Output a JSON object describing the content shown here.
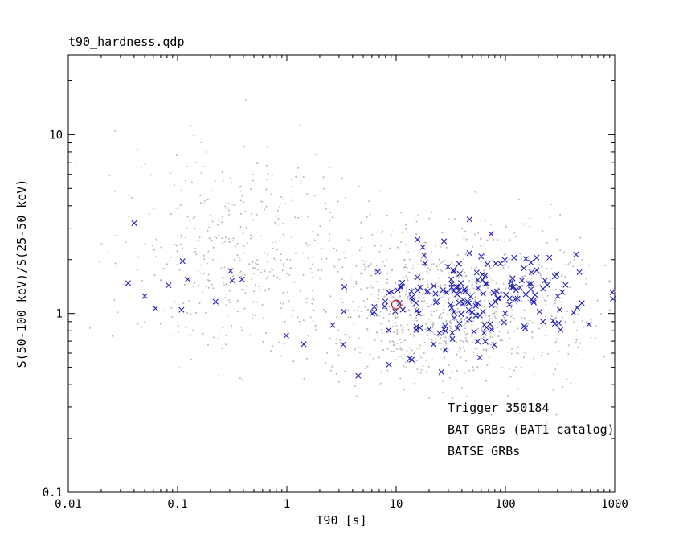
{
  "title": "t90_hardness.qdp",
  "axes": {
    "xlabel": "T90 [s]",
    "ylabel": "S(50-100 keV)/S(25-50 keV)",
    "xscale": "log",
    "yscale": "log",
    "xlim": [
      0.01,
      1000
    ],
    "ylim": [
      0.1,
      28
    ],
    "x_ticks": [
      {
        "v": 0.01,
        "label": "0.01"
      },
      {
        "v": 0.1,
        "label": "0.1"
      },
      {
        "v": 1,
        "label": "1"
      },
      {
        "v": 10,
        "label": "10"
      },
      {
        "v": 100,
        "label": "100"
      },
      {
        "v": 1000,
        "label": "1000"
      }
    ],
    "y_ticks": [
      {
        "v": 0.1,
        "label": "0.1"
      },
      {
        "v": 1,
        "label": "1"
      },
      {
        "v": 10,
        "label": "10"
      }
    ]
  },
  "legend": [
    {
      "label": "Trigger 350184",
      "color": "#cc2222"
    },
    {
      "label": "BAT GRBs (BAT1 catalog)",
      "color": "#2222bb"
    },
    {
      "label": "BATSE GRBs",
      "color": "#b0b0b0"
    }
  ],
  "colors": {
    "background": "#ffffff",
    "frame": "#000000",
    "batse_points": "#b8b8b8",
    "bat_points": "#2222bb",
    "trigger_marker": "#cc2222"
  },
  "chart_data": {
    "type": "scatter",
    "title": "t90_hardness.qdp",
    "xlabel": "T90 [s]",
    "ylabel": "S(50-100 keV)/S(25-50 keV)",
    "xlim": [
      0.01,
      1000
    ],
    "ylim": [
      0.1,
      28
    ],
    "xscale": "log",
    "yscale": "log",
    "seed": 20070214,
    "series": [
      {
        "name": "BATSE GRBs",
        "marker": "dot",
        "color": "#b8b8b8",
        "point_count": 1430,
        "clusters": [
          {
            "count": 1000,
            "x_log_mean": 1.55,
            "x_log_sd": 0.6,
            "y_log_mean": 0.05,
            "y_log_sd": 0.22
          },
          {
            "count": 430,
            "x_log_mean": -0.45,
            "x_log_sd": 0.55,
            "y_log_mean": 0.32,
            "y_log_sd": 0.3
          }
        ]
      },
      {
        "name": "BAT GRBs (BAT1 catalog)",
        "marker": "x",
        "color": "#2222bb",
        "point_count": 202,
        "clusters": [
          {
            "count": 185,
            "x_log_mean": 1.65,
            "x_log_sd": 0.55,
            "y_log_mean": 0.1,
            "y_log_sd": 0.14
          },
          {
            "count": 12,
            "x_log_mean": -0.75,
            "x_log_sd": 0.45,
            "y_log_mean": 0.18,
            "y_log_sd": 0.14
          },
          {
            "count": 5,
            "x_log_mean": 0.35,
            "x_log_sd": 0.4,
            "y_log_mean": -0.22,
            "y_log_sd": 0.15
          }
        ]
      },
      {
        "name": "Trigger 350184",
        "marker": "open-circle",
        "color": "#cc2222",
        "points": [
          {
            "x": 10,
            "y": 1.12
          }
        ]
      }
    ]
  }
}
